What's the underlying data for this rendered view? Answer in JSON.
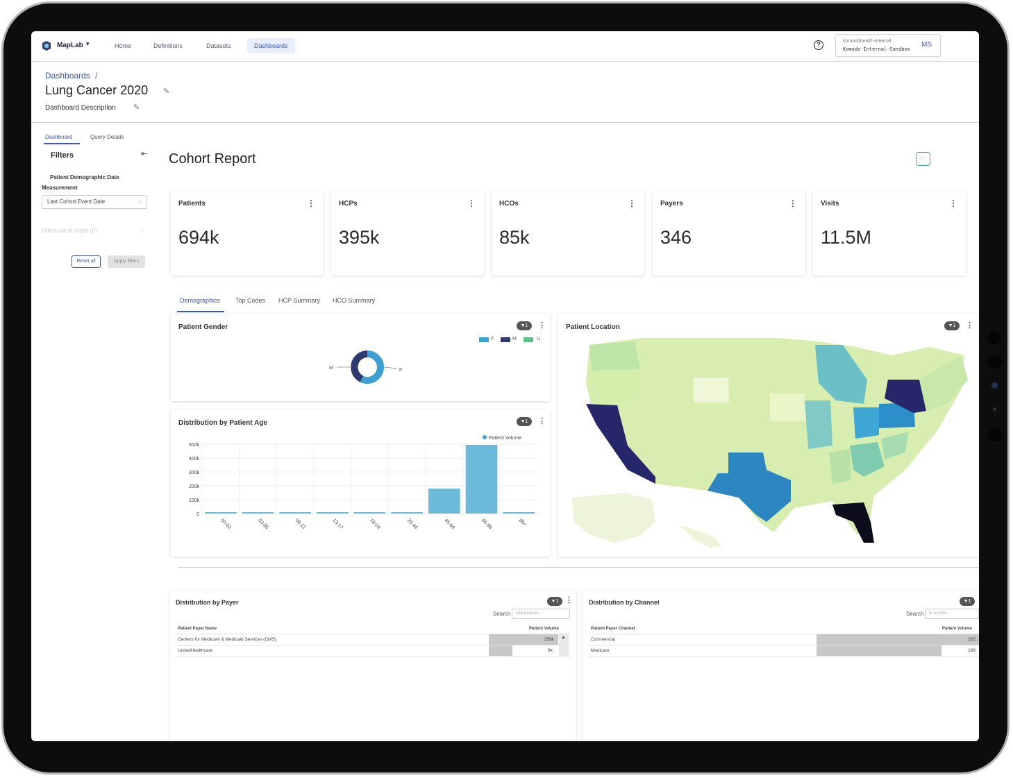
{
  "app": {
    "brand": "MapLab",
    "nav": [
      "Home",
      "Definitions",
      "Datasets",
      "Dashboards"
    ],
    "active_nav": "Dashboards",
    "account_org": "komodohealth-internal",
    "account_env": "Komodo-Internal-Sandbox",
    "account_initials": "MS",
    "help_glyph": "?"
  },
  "header": {
    "breadcrumb": "Dashboards",
    "breadcrumb_sep": "/",
    "title": "Lung Cancer 2020",
    "description": "Dashboard Description"
  },
  "sidebar": {
    "tabs": [
      "Dashboard",
      "Query Details"
    ],
    "filters_label": "Filters",
    "filter_name_line1": "Patient Demographic Date",
    "filter_name_line2": "Measurement",
    "filter_value": "Last Cohort Event Date",
    "out_of_scope": "Filters out of scope (0)",
    "reset_label": "Reset all",
    "apply_label": "Apply filters"
  },
  "main": {
    "title": "Cohort Report",
    "more_glyph": "···",
    "kpis": [
      {
        "label": "Patients",
        "value": "694k"
      },
      {
        "label": "HCPs",
        "value": "395k"
      },
      {
        "label": "HCOs",
        "value": "85k"
      },
      {
        "label": "Payers",
        "value": "346"
      },
      {
        "label": "Visits",
        "value": "11.5M"
      }
    ],
    "tabs": [
      "Demographics",
      "Top Codes",
      "HCP Summary",
      "HCO Summary"
    ],
    "filter_badge": "1",
    "gender_card": {
      "title": "Patient Gender",
      "legend": [
        "F",
        "M",
        "U"
      ],
      "slice_labels": [
        "M",
        "F"
      ]
    },
    "location_card": {
      "title": "Patient Location"
    },
    "payer_table": {
      "title": "Distribution by Payer",
      "search_label": "Search",
      "search_placeholder": "346 records...",
      "columns": [
        "Patient Payer Name",
        "Patient Volume"
      ],
      "rows": [
        {
          "name": "Centers for Medicare & Medicaid Services (CMS)",
          "value": "258k",
          "fraction": 1.0
        },
        {
          "name": "UnitedHealthcare",
          "value": "9k",
          "fraction": 0.28
        }
      ]
    },
    "channel_table": {
      "title": "Distribution by Channel",
      "search_label": "Search",
      "search_placeholder": "8 records...",
      "columns": [
        "Patient Payer Channel",
        "Patient Volume"
      ],
      "rows": [
        {
          "name": "Commercial",
          "value": "265",
          "fraction": 1.0
        },
        {
          "name": "Medicare",
          "value": "199",
          "fraction": 0.76
        }
      ]
    }
  },
  "colors": {
    "accent": "#3c56b4",
    "female": "#3ea0d2",
    "male": "#2f3a6f",
    "unknown": "#5cc08a",
    "age_bar": "#6bbad9"
  },
  "chart_data": {
    "type": "bar",
    "title": "Distribution by Patient Age",
    "categories": [
      "00-02",
      "03-05",
      "06-12",
      "13-17",
      "18-24",
      "25-44",
      "45-64",
      "65-88",
      "89+"
    ],
    "series": [
      {
        "name": "Patient Volume",
        "values": [
          0,
          0,
          0,
          0,
          0,
          3000,
          180000,
          495000,
          0
        ]
      }
    ],
    "y_ticks": [
      "500k",
      "400k",
      "300k",
      "200k",
      "100k",
      "0"
    ],
    "ylim": [
      0,
      500000
    ],
    "grid": true,
    "legend": "top-right"
  }
}
